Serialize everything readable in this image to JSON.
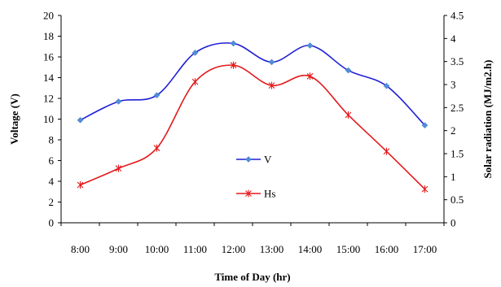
{
  "chart_data": {
    "type": "line",
    "categories": [
      "8:00",
      "9:00",
      "10:00",
      "11:00",
      "12:00",
      "13:00",
      "14:00",
      "15:00",
      "16:00",
      "17:00"
    ],
    "series": [
      {
        "name": "V",
        "axis": "left",
        "color": "#1f1fd6",
        "marker": "diamond",
        "values": [
          9.9,
          11.7,
          12.3,
          16.4,
          17.3,
          15.5,
          17.1,
          14.7,
          13.2,
          9.4
        ]
      },
      {
        "name": "Hs",
        "axis": "right",
        "color": "#e31a1c",
        "marker": "star",
        "values": [
          0.82,
          1.18,
          1.62,
          3.06,
          3.42,
          2.98,
          3.18,
          2.34,
          1.55,
          0.73
        ]
      }
    ],
    "xlabel": "Time of Day (hr)",
    "ylabel": "Voltage (V)",
    "y2label": "Solar radiation (MJ/m2.h)",
    "ylim": [
      0,
      20
    ],
    "y2lim": [
      0,
      4.5
    ],
    "yticks": [
      "0",
      "2",
      "4",
      "6",
      "8",
      "10",
      "12",
      "14",
      "16",
      "18",
      "20"
    ],
    "y2ticks": [
      "0",
      "0.5",
      "1",
      "1.5",
      "2",
      "2.5",
      "3",
      "3.5",
      "4",
      "4.5"
    ],
    "grid": false,
    "legend_placement": "center"
  }
}
